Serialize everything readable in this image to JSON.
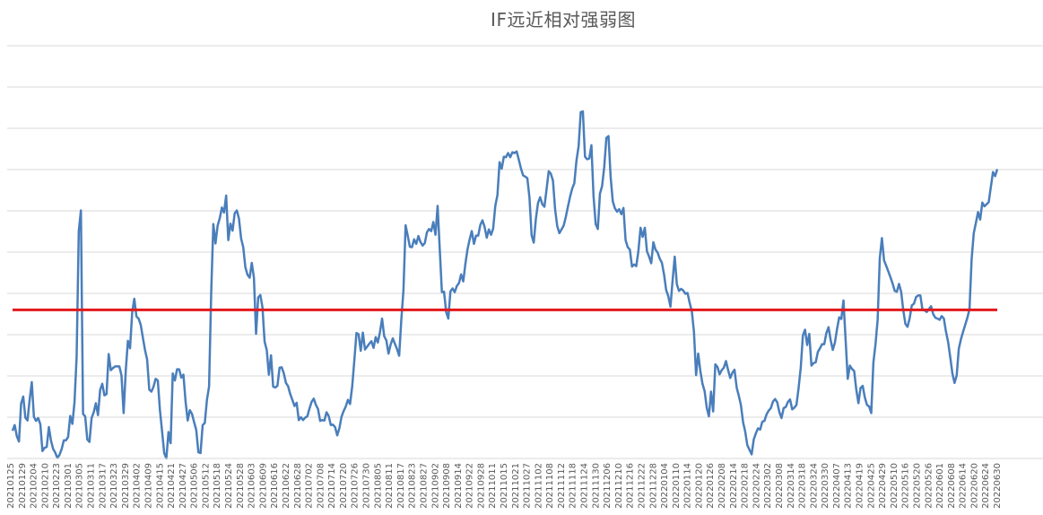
{
  "chart_data": {
    "type": "line",
    "title": "IF远近相对强弱图",
    "xlabel": "",
    "ylabel": "",
    "ylim": [
      0,
      100
    ],
    "y_axis_labels_visible": false,
    "grid": true,
    "legend": "none",
    "colors": {
      "line": "#4a7ebb",
      "reference": "#e31a1c",
      "grid": "#d9d9d9"
    },
    "x_tick_labels": [
      "20210125",
      "20210129",
      "20210204",
      "20210210",
      "20210223",
      "20210301",
      "20210305",
      "20210311",
      "20210317",
      "20210323",
      "20210329",
      "20210402",
      "20210409",
      "20210415",
      "20210421",
      "20210427",
      "20210506",
      "20210512",
      "20210518",
      "20210524",
      "20210528",
      "20210603",
      "20210609",
      "20210616",
      "20210622",
      "20210628",
      "20210702",
      "20210708",
      "20210714",
      "20210720",
      "20210726",
      "20210730",
      "20210805",
      "20210811",
      "20210817",
      "20210823",
      "20210827",
      "20210902",
      "20210908",
      "20210914",
      "20210922",
      "20210928",
      "20211011",
      "20211015",
      "20211021",
      "20211027",
      "20211102",
      "20211108",
      "20211112",
      "20211118",
      "20211124",
      "20211130",
      "20211206",
      "20211210",
      "20211216",
      "20211222",
      "20211228",
      "20220104",
      "20220110",
      "20220114",
      "20220120",
      "20220126",
      "20220208",
      "20220214",
      "20220218",
      "20220224",
      "20220302",
      "20220308",
      "20220314",
      "20220318",
      "20220324",
      "20220330",
      "20220407",
      "20220413",
      "20220419",
      "20220425",
      "20220429",
      "20220510",
      "20220516",
      "20220520",
      "20220526",
      "20220601",
      "20220608",
      "20220614",
      "20220620",
      "20220624",
      "20220630"
    ],
    "series": [
      {
        "values": [
          6,
          9,
          5,
          4,
          13,
          15,
          9,
          9,
          14,
          18,
          10,
          9,
          10,
          9,
          2,
          3,
          3,
          7,
          4,
          3,
          2,
          0,
          1,
          2,
          4,
          4,
          5,
          10,
          8,
          13,
          24,
          55,
          60,
          11,
          10,
          5,
          4,
          9,
          11,
          13,
          10,
          16,
          18,
          15,
          15,
          25,
          21,
          21,
          22,
          22,
          22,
          20,
          11,
          21,
          28,
          26,
          35,
          39,
          34,
          33,
          32,
          29,
          26,
          24,
          16,
          16,
          17,
          19,
          18,
          11,
          6,
          1,
          0,
          6,
          3,
          20,
          18,
          21,
          21,
          19,
          20,
          13,
          9,
          11,
          10,
          8,
          6,
          1,
          1,
          8,
          8,
          14,
          17,
          40,
          56,
          52,
          56,
          58,
          60,
          59,
          63,
          52,
          56,
          55,
          59,
          60,
          58,
          53,
          51,
          46,
          44,
          43,
          47,
          43,
          30,
          39,
          39,
          36,
          28,
          26,
          20,
          25,
          17,
          17,
          17,
          22,
          22,
          20,
          18,
          17,
          15,
          14,
          12,
          13,
          9,
          10,
          9,
          9,
          10,
          12,
          13,
          14,
          13,
          12,
          9,
          9,
          9,
          11,
          10,
          8,
          8,
          7,
          5,
          7,
          10,
          11,
          12,
          14,
          13,
          17,
          23,
          30,
          30,
          26,
          30,
          26,
          27,
          27,
          28,
          26,
          29,
          28,
          30,
          33,
          29,
          28,
          25,
          27,
          29,
          27,
          26,
          24,
          33,
          40,
          56,
          54,
          51,
          51,
          53,
          52,
          53,
          52,
          51,
          52,
          54,
          55,
          55,
          57,
          54,
          61,
          50,
          40,
          40,
          35,
          33,
          40,
          41,
          40,
          41,
          42,
          44,
          42,
          47,
          50,
          53,
          55,
          52,
          54,
          54,
          56,
          57,
          56,
          53,
          55,
          54,
          55,
          61,
          63,
          71,
          70,
          73,
          73,
          74,
          73,
          74,
          74,
          74,
          72,
          70,
          68,
          68,
          67,
          63,
          54,
          52,
          58,
          61,
          63,
          61,
          61,
          65,
          69,
          69,
          67,
          60,
          56,
          54,
          55,
          56,
          58,
          61,
          63,
          65,
          66,
          72,
          75,
          83,
          84,
          73,
          72,
          72,
          75,
          63,
          56,
          55,
          64,
          66,
          70,
          77,
          78,
          68,
          62,
          60,
          59,
          60,
          59,
          60,
          52,
          51,
          50,
          46,
          47,
          46,
          50,
          55,
          53,
          55,
          50,
          48,
          47,
          52,
          50,
          49,
          48,
          47,
          44,
          40,
          39,
          36,
          43,
          48,
          42,
          40,
          41,
          40,
          39,
          40,
          37,
          35,
          30,
          20,
          25,
          21,
          18,
          16,
          12,
          10,
          16,
          11,
          22,
          22,
          20,
          21,
          22,
          23,
          21,
          19,
          20,
          21,
          17,
          15,
          12,
          8,
          6,
          3,
          2,
          1,
          4,
          6,
          7,
          7,
          8,
          9,
          10,
          11,
          12,
          13,
          14,
          13,
          11,
          9,
          12,
          12,
          13,
          14,
          11,
          12,
          13,
          17,
          22,
          29,
          31,
          27,
          30,
          22,
          23,
          23,
          25,
          26,
          27,
          27,
          30,
          31,
          28,
          26,
          28,
          31,
          34,
          33,
          38,
          28,
          19,
          22,
          21,
          21,
          16,
          13,
          17,
          17,
          14,
          13,
          12,
          11,
          23,
          27,
          33,
          48,
          53,
          48,
          46,
          45,
          43,
          42,
          40,
          40,
          42,
          40,
          35,
          32,
          31,
          34,
          37,
          37,
          39,
          39,
          39,
          36,
          35,
          35,
          36,
          36,
          35,
          34,
          33,
          33,
          34,
          33,
          30,
          28,
          24,
          20,
          18,
          20,
          26,
          28,
          30,
          32,
          34,
          36,
          48,
          54,
          57,
          59,
          57,
          62,
          61,
          61,
          62,
          65,
          69,
          68,
          70
        ],
        "raw_values": [
          6.7,
          8.1,
          5.4,
          4.1,
          13.3,
          15.0,
          9.9,
          9.2,
          14.2,
          18.5,
          10.1,
          9.1,
          9.8,
          8.3,
          1.8,
          2.6,
          2.8,
          7.6,
          4.3,
          2.3,
          1.4,
          0.1,
          0.9,
          2.3,
          4.4,
          4.4,
          5.2,
          10.3,
          8.4,
          13.6,
          24.7,
          55.1,
          60.1,
          10.8,
          10.2,
          4.6,
          4.0,
          9.8,
          11.2,
          13.4,
          10.5,
          16.6,
          18.1,
          15.3,
          15.6,
          25.3,
          21.4,
          21.9,
          22.3,
          22.3,
          22.3,
          20.1,
          11.0,
          21.3,
          28.5,
          26.7,
          35.3,
          38.7,
          34.4,
          33.9,
          32.4,
          29.3,
          26.3,
          24.0,
          16.7,
          16.2,
          17.4,
          19.3,
          18.9,
          11.7,
          6.6,
          1.3,
          0.0,
          6.4,
          3.7,
          20.6,
          18.9,
          21.6,
          21.6,
          19.6,
          20.3,
          13.8,
          9.2,
          11.7,
          10.8,
          8.8,
          6.9,
          1.5,
          1.3,
          8.1,
          8.6,
          14.2,
          17.4,
          40.3,
          56.8,
          52.1,
          56.4,
          58.2,
          60.8,
          59.6,
          63.7,
          52.9,
          56.9,
          55.2,
          59.4,
          60.1,
          58.1,
          53.3,
          51.2,
          46.3,
          44.5,
          43.8,
          47.4,
          43.8,
          30.2,
          39.0,
          39.6,
          36.6,
          28.3,
          26.3,
          20.3,
          25.0,
          17.4,
          17.2,
          17.6,
          22.0,
          22.1,
          20.6,
          18.3,
          17.5,
          15.6,
          14.2,
          12.7,
          13.5,
          9.3,
          10.0,
          9.3,
          9.9,
          10.2,
          12.1,
          13.7,
          14.5,
          13.0,
          12.0,
          9.1,
          9.3,
          9.2,
          11.2,
          10.3,
          8.1,
          8.2,
          7.6,
          5.6,
          7.3,
          10.1,
          11.5,
          12.6,
          14.2,
          13.2,
          17.4,
          23.7,
          30.4,
          30.1,
          26.1,
          30.5,
          26.4,
          27.1,
          27.8,
          28.4,
          26.8,
          29.4,
          28.1,
          30.6,
          33.9,
          29.6,
          28.6,
          25.4,
          27.6,
          29.1,
          27.8,
          26.5,
          24.9,
          33.6,
          40.7,
          56.5,
          54.0,
          51.3,
          51.2,
          53.1,
          52.0,
          53.9,
          52.4,
          51.6,
          52.2,
          54.8,
          55.6,
          55.1,
          57.3,
          54.2,
          61.2,
          50.6,
          40.3,
          40.4,
          35.5,
          33.9,
          40.5,
          41.2,
          40.3,
          41.8,
          42.5,
          44.6,
          42.9,
          47.2,
          50.7,
          53.1,
          55.1,
          52.0,
          54.0,
          54.0,
          56.6,
          57.7,
          56.1,
          53.5,
          55.5,
          54.2,
          55.7,
          61.2,
          63.8,
          71.8,
          70.2,
          73.1,
          73.0,
          74.0,
          73.0,
          74.2,
          74.0,
          74.4,
          72.4,
          70.3,
          68.6,
          68.3,
          67.9,
          63.2,
          54.1,
          52.3,
          58.1,
          61.9,
          63.3,
          61.6,
          61.0,
          65.2,
          69.6,
          69.0,
          67.3,
          60.4,
          56.3,
          54.6,
          55.5,
          56.4,
          58.5,
          61.0,
          63.4,
          65.4,
          66.7,
          72.2,
          75.6,
          83.9,
          84.1,
          73.1,
          72.5,
          72.7,
          75.9,
          63.5,
          56.8,
          55.6,
          64.2,
          66.0,
          70.6,
          77.7,
          78.1,
          68.2,
          62.3,
          60.6,
          59.8,
          60.4,
          59.2,
          60.7,
          52.9,
          51.2,
          50.6,
          46.5,
          47.0,
          46.6,
          50.3,
          55.9,
          53.7,
          55.9,
          50.2,
          48.9,
          47.3,
          52.4,
          50.6,
          49.9,
          48.4,
          47.4,
          44.6,
          40.8,
          39.3,
          36.8,
          43.1,
          48.9,
          42.2,
          40.6,
          41.1,
          40.7,
          39.9,
          40.1,
          37.7,
          35.7,
          30.7,
          20.2,
          25.4,
          21.2,
          18.1,
          16.3,
          12.3,
          10.2,
          16.2,
          11.4,
          22.8,
          22.2,
          20.4,
          21.4,
          22.0,
          23.6,
          21.4,
          19.5,
          20.8,
          21.5,
          17.2,
          15.2,
          12.9,
          8.8,
          6.5,
          3.2,
          2.1,
          1.0,
          4.6,
          6.1,
          7.3,
          7.0,
          8.9,
          9.1,
          10.7,
          11.6,
          12.2,
          13.8,
          14.4,
          13.6,
          11.2,
          9.8,
          12.2,
          12.5,
          13.7,
          14.3,
          11.9,
          12.3,
          13.0,
          17.1,
          22.0,
          29.8,
          31.2,
          27.5,
          30.2,
          22.5,
          23.1,
          23.3,
          25.8,
          26.7,
          27.7,
          27.7,
          30.4,
          31.8,
          28.7,
          26.3,
          28.1,
          31.4,
          34.2,
          33.8,
          38.3,
          28.8,
          19.3,
          22.5,
          21.7,
          21.2,
          16.7,
          13.4,
          17.1,
          17.6,
          14.8,
          13.0,
          12.6,
          11.0,
          23.2,
          27.7,
          33.6,
          48.5,
          53.4,
          48.0,
          46.7,
          45.3,
          43.9,
          42.4,
          40.6,
          40.4,
          42.3,
          40.4,
          35.9,
          32.6,
          31.9,
          34.0,
          37.1,
          37.5,
          39.1,
          39.5,
          39.5,
          36.0,
          35.9,
          35.5,
          36.2,
          36.9,
          35.0,
          34.1,
          33.9,
          33.6,
          34.5,
          33.9,
          30.7,
          28.2,
          24.5,
          20.6,
          18.3,
          20.1,
          26.6,
          28.9,
          30.7,
          32.4,
          34.1,
          36.2,
          48.3,
          54.6,
          57.1,
          59.7,
          57.9,
          62.0,
          61.1,
          61.6,
          62.1,
          65.8,
          69.4,
          68.4,
          70.1
        ]
      }
    ],
    "reference_line": {
      "y": 36
    }
  }
}
